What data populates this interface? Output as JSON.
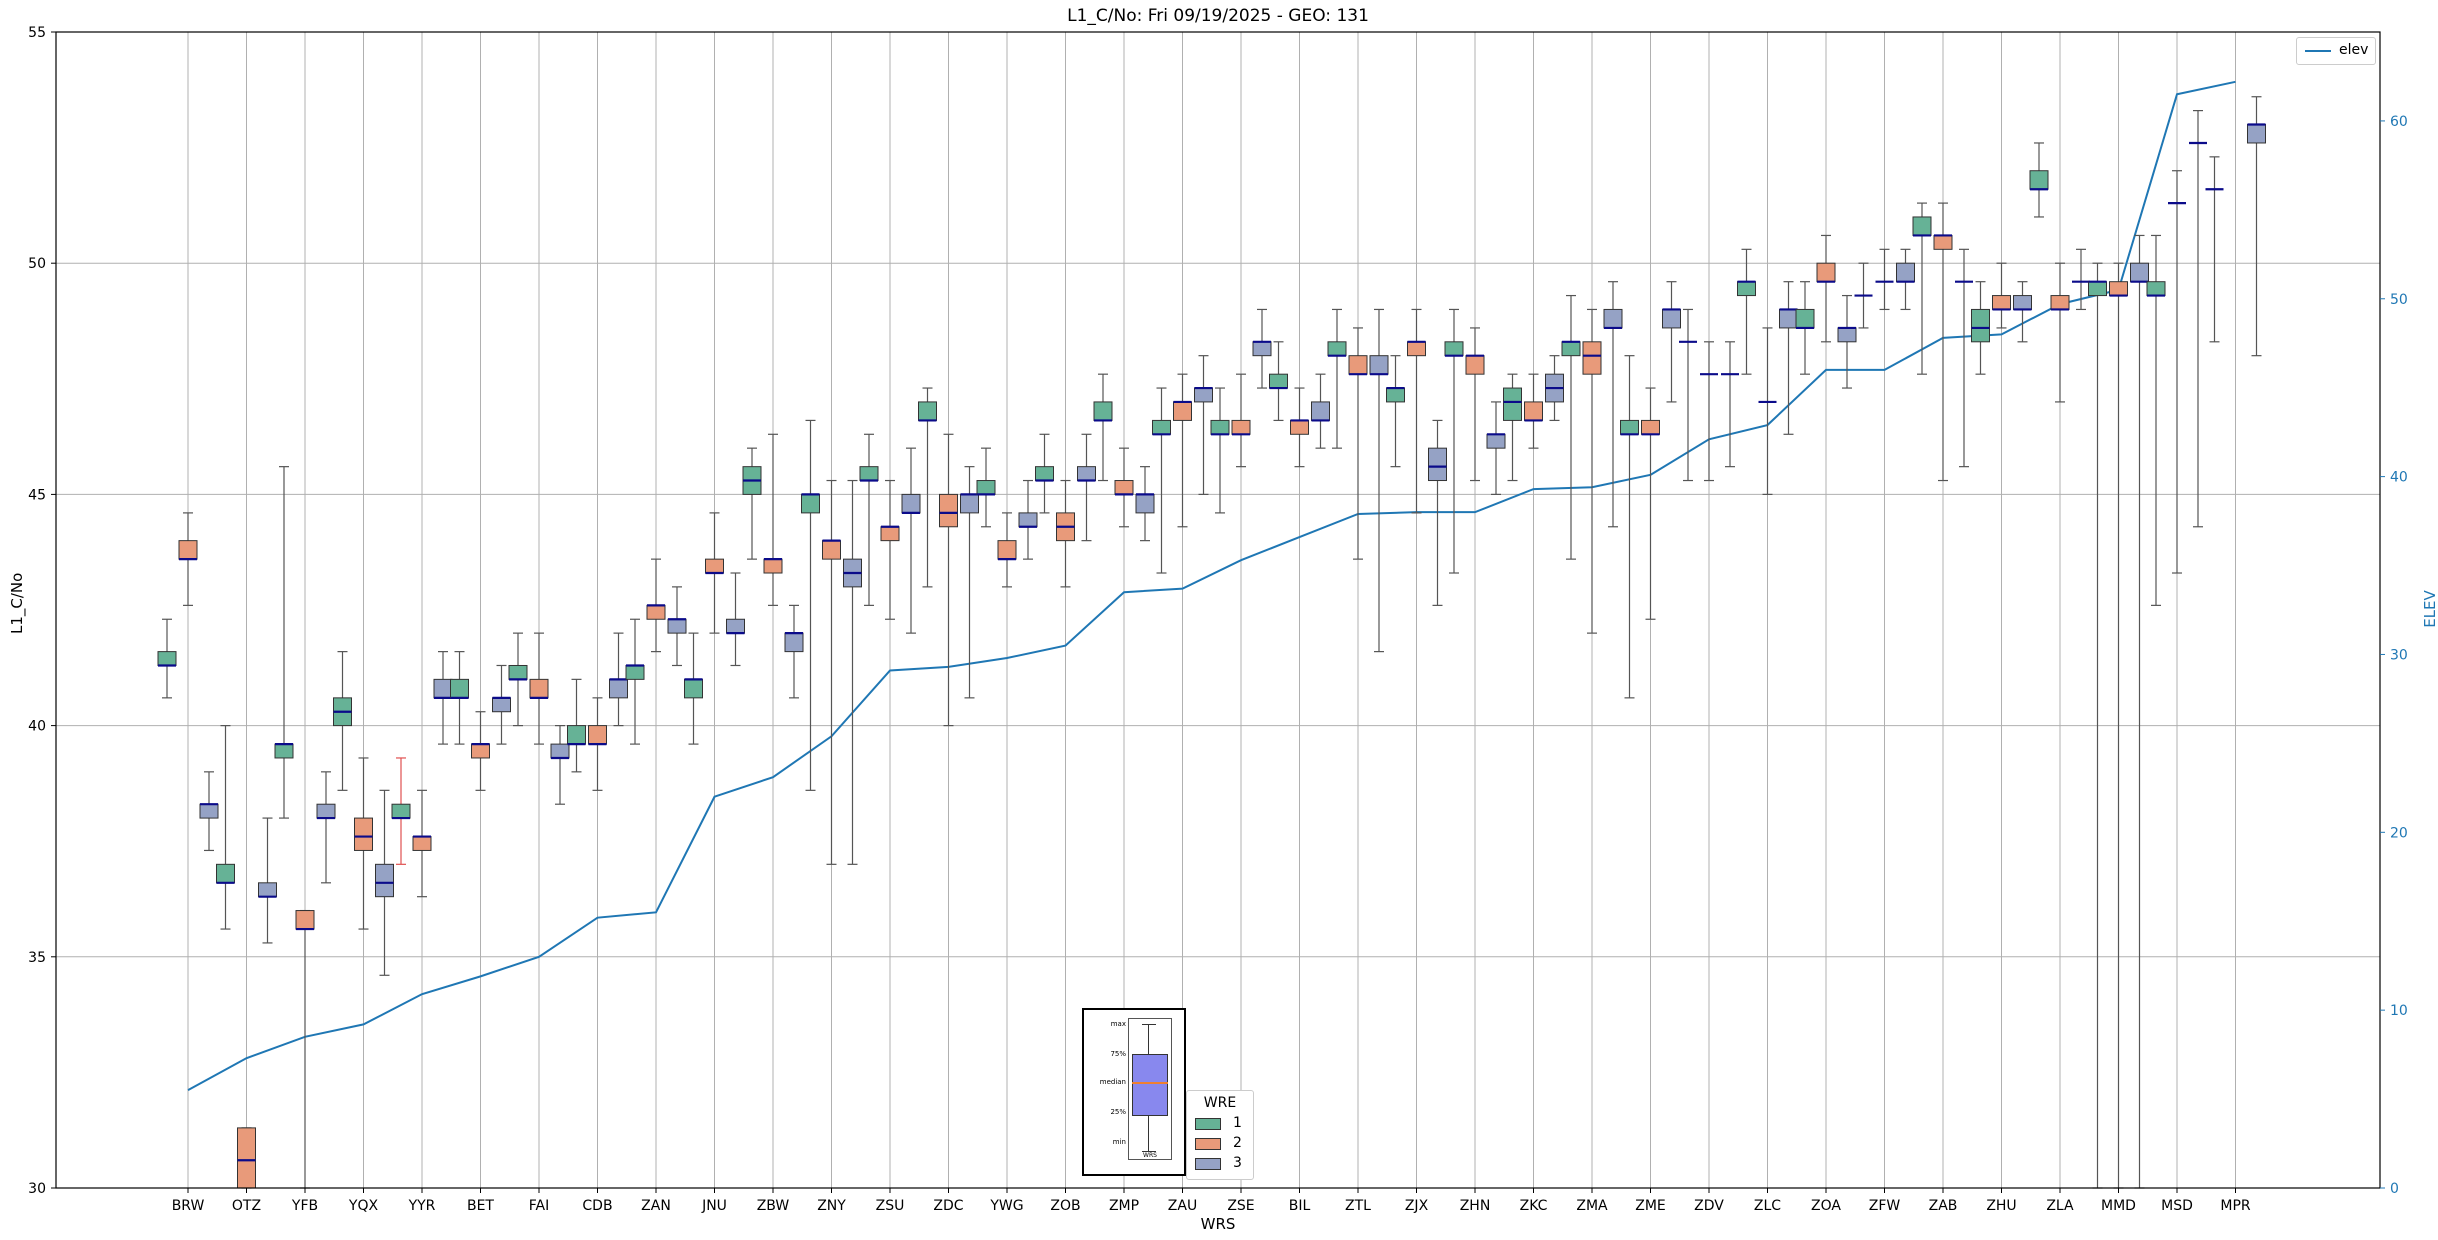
{
  "chart_data": {
    "type": "boxplot",
    "title": "L1_C/No: Fri 09/19/2025 - GEO: 131",
    "xlabel": "WRS",
    "ylabel": "L1_C/No",
    "y2label": "ELEV",
    "ylim": [
      30,
      55
    ],
    "y2lim": [
      0,
      65
    ],
    "yticks": [
      30,
      35,
      40,
      45,
      50,
      55
    ],
    "y2ticks": [
      0,
      10,
      20,
      30,
      40,
      50,
      60
    ],
    "grid": true,
    "colors": {
      "1": "#66b296",
      "2": "#e89a7a",
      "3": "#95a2c5",
      "elev": "#1f77b4",
      "median": "#0b0b8a",
      "whisker": "#555555",
      "whisker_red": "#e05050"
    },
    "categories": [
      "BRW",
      "OTZ",
      "YFB",
      "YQX",
      "YYR",
      "BET",
      "FAI",
      "CDB",
      "ZAN",
      "JNU",
      "ZBW",
      "ZNY",
      "ZSU",
      "ZDC",
      "YWG",
      "ZOB",
      "ZMP",
      "ZAU",
      "ZSE",
      "BIL",
      "ZTL",
      "ZJX",
      "ZHN",
      "ZKC",
      "ZMA",
      "ZME",
      "ZDV",
      "ZLC",
      "ZOA",
      "ZFW",
      "ZAB",
      "ZHU",
      "ZLA",
      "MMD",
      "MSD",
      "MPR"
    ],
    "elev_series": {
      "name": "elev",
      "values": [
        5.5,
        7.3,
        8.5,
        9.2,
        10.9,
        11.9,
        13.0,
        15.2,
        15.5,
        22.0,
        23.1,
        25.4,
        29.1,
        29.3,
        29.8,
        30.5,
        33.5,
        33.7,
        35.3,
        36.6,
        37.9,
        38.0,
        38.0,
        39.3,
        39.4,
        40.1,
        42.1,
        42.9,
        46.0,
        46.0,
        47.8,
        48.0,
        49.7,
        50.5,
        61.5,
        62.2
      ]
    },
    "boxes": [
      {
        "wrs": "BRW",
        "wre": 1,
        "q1": 41.3,
        "q3": 41.6,
        "median": 41.3,
        "min": 40.6,
        "max": 42.3
      },
      {
        "wrs": "BRW",
        "wre": 2,
        "q1": 43.6,
        "q3": 44.0,
        "median": 43.6,
        "min": 42.6,
        "max": 44.6
      },
      {
        "wrs": "BRW",
        "wre": 3,
        "q1": 38.0,
        "q3": 38.3,
        "median": 38.3,
        "min": 37.3,
        "max": 39.0
      },
      {
        "wrs": "OTZ",
        "wre": 1,
        "q1": 36.6,
        "q3": 37.0,
        "median": 36.6,
        "min": 35.6,
        "max": 40.0
      },
      {
        "wrs": "OTZ",
        "wre": 2,
        "q1": 30.0,
        "q3": 31.3,
        "median": 30.6,
        "min": 30.0,
        "max": 31.3
      },
      {
        "wrs": "OTZ",
        "wre": 3,
        "q1": 36.3,
        "q3": 36.6,
        "median": 36.3,
        "min": 35.3,
        "max": 38.0
      },
      {
        "wrs": "YFB",
        "wre": 1,
        "q1": 39.3,
        "q3": 39.6,
        "median": 39.6,
        "min": 38.0,
        "max": 45.6
      },
      {
        "wrs": "YFB",
        "wre": 2,
        "q1": 35.6,
        "q3": 36.0,
        "median": 35.6,
        "min": 30.0,
        "max": 36.0
      },
      {
        "wrs": "YFB",
        "wre": 3,
        "q1": 38.0,
        "q3": 38.3,
        "median": 38.0,
        "min": 36.6,
        "max": 39.0
      },
      {
        "wrs": "YQX",
        "wre": 1,
        "q1": 40.0,
        "q3": 40.6,
        "median": 40.3,
        "min": 38.6,
        "max": 41.6
      },
      {
        "wrs": "YQX",
        "wre": 2,
        "q1": 37.3,
        "q3": 38.0,
        "median": 37.6,
        "min": 35.6,
        "max": 39.3
      },
      {
        "wrs": "YQX",
        "wre": 3,
        "q1": 36.3,
        "q3": 37.0,
        "median": 36.6,
        "min": 34.6,
        "max": 38.6
      },
      {
        "wrs": "YYR",
        "wre": 1,
        "q1": 38.0,
        "q3": 38.3,
        "median": 38.0,
        "min": 37.0,
        "max": 39.3,
        "red_whisker": true
      },
      {
        "wrs": "YYR",
        "wre": 2,
        "q1": 37.3,
        "q3": 37.6,
        "median": 37.6,
        "min": 36.3,
        "max": 38.6
      },
      {
        "wrs": "YYR",
        "wre": 3,
        "q1": 40.6,
        "q3": 41.0,
        "median": 40.6,
        "min": 39.6,
        "max": 41.6
      },
      {
        "wrs": "BET",
        "wre": 1,
        "q1": 40.6,
        "q3": 41.0,
        "median": 40.6,
        "min": 39.6,
        "max": 41.6
      },
      {
        "wrs": "BET",
        "wre": 2,
        "q1": 39.3,
        "q3": 39.6,
        "median": 39.6,
        "min": 38.6,
        "max": 40.3
      },
      {
        "wrs": "BET",
        "wre": 3,
        "q1": 40.3,
        "q3": 40.6,
        "median": 40.6,
        "min": 39.6,
        "max": 41.3
      },
      {
        "wrs": "FAI",
        "wre": 1,
        "q1": 41.0,
        "q3": 41.3,
        "median": 41.0,
        "min": 40.0,
        "max": 42.0
      },
      {
        "wrs": "FAI",
        "wre": 2,
        "q1": 40.6,
        "q3": 41.0,
        "median": 40.6,
        "min": 39.6,
        "max": 42.0
      },
      {
        "wrs": "FAI",
        "wre": 3,
        "q1": 39.3,
        "q3": 39.6,
        "median": 39.3,
        "min": 38.3,
        "max": 40.0
      },
      {
        "wrs": "CDB",
        "wre": 1,
        "q1": 39.6,
        "q3": 40.0,
        "median": 39.6,
        "min": 39.0,
        "max": 41.0
      },
      {
        "wrs": "CDB",
        "wre": 2,
        "q1": 39.6,
        "q3": 40.0,
        "median": 39.6,
        "min": 38.6,
        "max": 40.6
      },
      {
        "wrs": "CDB",
        "wre": 3,
        "q1": 40.6,
        "q3": 41.0,
        "median": 41.0,
        "min": 40.0,
        "max": 42.0
      },
      {
        "wrs": "ZAN",
        "wre": 1,
        "q1": 41.0,
        "q3": 41.3,
        "median": 41.3,
        "min": 39.6,
        "max": 42.3
      },
      {
        "wrs": "ZAN",
        "wre": 2,
        "q1": 42.3,
        "q3": 42.6,
        "median": 42.6,
        "min": 41.6,
        "max": 43.6
      },
      {
        "wrs": "ZAN",
        "wre": 3,
        "q1": 42.0,
        "q3": 42.3,
        "median": 42.3,
        "min": 41.3,
        "max": 43.0
      },
      {
        "wrs": "JNU",
        "wre": 1,
        "q1": 40.6,
        "q3": 41.0,
        "median": 41.0,
        "min": 39.6,
        "max": 42.0
      },
      {
        "wrs": "JNU",
        "wre": 2,
        "q1": 43.3,
        "q3": 43.6,
        "median": 43.3,
        "min": 42.0,
        "max": 44.6
      },
      {
        "wrs": "JNU",
        "wre": 3,
        "q1": 42.0,
        "q3": 42.3,
        "median": 42.0,
        "min": 41.3,
        "max": 43.3
      },
      {
        "wrs": "ZBW",
        "wre": 1,
        "q1": 45.0,
        "q3": 45.6,
        "median": 45.3,
        "min": 43.6,
        "max": 46.0
      },
      {
        "wrs": "ZBW",
        "wre": 2,
        "q1": 43.3,
        "q3": 43.6,
        "median": 43.6,
        "min": 42.6,
        "max": 46.3
      },
      {
        "wrs": "ZBW",
        "wre": 3,
        "q1": 41.6,
        "q3": 42.0,
        "median": 42.0,
        "min": 40.6,
        "max": 42.6
      },
      {
        "wrs": "ZNY",
        "wre": 1,
        "q1": 44.6,
        "q3": 45.0,
        "median": 45.0,
        "min": 38.6,
        "max": 46.6
      },
      {
        "wrs": "ZNY",
        "wre": 2,
        "q1": 43.6,
        "q3": 44.0,
        "median": 44.0,
        "min": 37.0,
        "max": 45.3
      },
      {
        "wrs": "ZNY",
        "wre": 3,
        "q1": 43.0,
        "q3": 43.6,
        "median": 43.3,
        "min": 37.0,
        "max": 45.3
      },
      {
        "wrs": "ZSU",
        "wre": 1,
        "q1": 45.3,
        "q3": 45.6,
        "median": 45.3,
        "min": 42.6,
        "max": 46.3
      },
      {
        "wrs": "ZSU",
        "wre": 2,
        "q1": 44.0,
        "q3": 44.3,
        "median": 44.3,
        "min": 42.3,
        "max": 45.3
      },
      {
        "wrs": "ZSU",
        "wre": 3,
        "q1": 44.6,
        "q3": 45.0,
        "median": 44.6,
        "min": 42.0,
        "max": 46.0
      },
      {
        "wrs": "ZDC",
        "wre": 1,
        "q1": 46.6,
        "q3": 47.0,
        "median": 46.6,
        "min": 43.0,
        "max": 47.3
      },
      {
        "wrs": "ZDC",
        "wre": 2,
        "q1": 44.3,
        "q3": 45.0,
        "median": 44.6,
        "min": 40.0,
        "max": 46.3
      },
      {
        "wrs": "ZDC",
        "wre": 3,
        "q1": 44.6,
        "q3": 45.0,
        "median": 45.0,
        "min": 40.6,
        "max": 45.6
      },
      {
        "wrs": "YWG",
        "wre": 1,
        "q1": 45.0,
        "q3": 45.3,
        "median": 45.0,
        "min": 44.3,
        "max": 46.0
      },
      {
        "wrs": "YWG",
        "wre": 2,
        "q1": 43.6,
        "q3": 44.0,
        "median": 43.6,
        "min": 43.0,
        "max": 44.6
      },
      {
        "wrs": "YWG",
        "wre": 3,
        "q1": 44.3,
        "q3": 44.6,
        "median": 44.3,
        "min": 43.6,
        "max": 45.3
      },
      {
        "wrs": "ZOB",
        "wre": 1,
        "q1": 45.3,
        "q3": 45.6,
        "median": 45.3,
        "min": 44.6,
        "max": 46.3
      },
      {
        "wrs": "ZOB",
        "wre": 2,
        "q1": 44.0,
        "q3": 44.6,
        "median": 44.3,
        "min": 43.0,
        "max": 45.3
      },
      {
        "wrs": "ZOB",
        "wre": 3,
        "q1": 45.3,
        "q3": 45.6,
        "median": 45.3,
        "min": 44.0,
        "max": 46.3
      },
      {
        "wrs": "ZMP",
        "wre": 1,
        "q1": 46.6,
        "q3": 47.0,
        "median": 46.6,
        "min": 45.3,
        "max": 47.6
      },
      {
        "wrs": "ZMP",
        "wre": 2,
        "q1": 45.0,
        "q3": 45.3,
        "median": 45.0,
        "min": 44.3,
        "max": 46.0
      },
      {
        "wrs": "ZMP",
        "wre": 3,
        "q1": 44.6,
        "q3": 45.0,
        "median": 45.0,
        "min": 44.0,
        "max": 45.6
      },
      {
        "wrs": "ZAU",
        "wre": 1,
        "q1": 46.3,
        "q3": 46.6,
        "median": 46.3,
        "min": 43.3,
        "max": 47.3
      },
      {
        "wrs": "ZAU",
        "wre": 2,
        "q1": 46.6,
        "q3": 47.0,
        "median": 47.0,
        "min": 44.3,
        "max": 47.6
      },
      {
        "wrs": "ZAU",
        "wre": 3,
        "q1": 47.0,
        "q3": 47.3,
        "median": 47.3,
        "min": 45.0,
        "max": 48.0
      },
      {
        "wrs": "ZSE",
        "wre": 1,
        "q1": 46.3,
        "q3": 46.6,
        "median": 46.3,
        "min": 44.6,
        "max": 47.3
      },
      {
        "wrs": "ZSE",
        "wre": 2,
        "q1": 46.3,
        "q3": 46.6,
        "median": 46.3,
        "min": 45.6,
        "max": 47.6
      },
      {
        "wrs": "ZSE",
        "wre": 3,
        "q1": 48.0,
        "q3": 48.3,
        "median": 48.3,
        "min": 47.3,
        "max": 49.0
      },
      {
        "wrs": "BIL",
        "wre": 1,
        "q1": 47.3,
        "q3": 47.6,
        "median": 47.3,
        "min": 46.6,
        "max": 48.3
      },
      {
        "wrs": "BIL",
        "wre": 2,
        "q1": 46.3,
        "q3": 46.6,
        "median": 46.6,
        "min": 45.6,
        "max": 47.3
      },
      {
        "wrs": "BIL",
        "wre": 3,
        "q1": 46.6,
        "q3": 47.0,
        "median": 46.6,
        "min": 46.0,
        "max": 47.6
      },
      {
        "wrs": "ZTL",
        "wre": 1,
        "q1": 48.0,
        "q3": 48.3,
        "median": 48.0,
        "min": 46.0,
        "max": 49.0
      },
      {
        "wrs": "ZTL",
        "wre": 2,
        "q1": 47.6,
        "q3": 48.0,
        "median": 47.6,
        "min": 43.6,
        "max": 48.6
      },
      {
        "wrs": "ZTL",
        "wre": 3,
        "q1": 47.6,
        "q3": 48.0,
        "median": 47.6,
        "min": 41.6,
        "max": 49.0
      },
      {
        "wrs": "ZJX",
        "wre": 1,
        "q1": 47.0,
        "q3": 47.3,
        "median": 47.3,
        "min": 45.6,
        "max": 48.0
      },
      {
        "wrs": "ZJX",
        "wre": 2,
        "q1": 48.0,
        "q3": 48.3,
        "median": 48.3,
        "min": 44.6,
        "max": 49.0
      },
      {
        "wrs": "ZJX",
        "wre": 3,
        "q1": 45.3,
        "q3": 46.0,
        "median": 45.6,
        "min": 42.6,
        "max": 46.6
      },
      {
        "wrs": "ZHN",
        "wre": 1,
        "q1": 48.0,
        "q3": 48.3,
        "median": 48.0,
        "min": 43.3,
        "max": 49.0
      },
      {
        "wrs": "ZHN",
        "wre": 2,
        "q1": 47.6,
        "q3": 48.0,
        "median": 48.0,
        "min": 45.3,
        "max": 48.6
      },
      {
        "wrs": "ZHN",
        "wre": 3,
        "q1": 46.0,
        "q3": 46.3,
        "median": 46.3,
        "min": 45.0,
        "max": 47.0
      },
      {
        "wrs": "ZKC",
        "wre": 1,
        "q1": 46.6,
        "q3": 47.3,
        "median": 47.0,
        "min": 45.3,
        "max": 47.6
      },
      {
        "wrs": "ZKC",
        "wre": 2,
        "q1": 46.6,
        "q3": 47.0,
        "median": 46.6,
        "min": 46.0,
        "max": 47.6
      },
      {
        "wrs": "ZKC",
        "wre": 3,
        "q1": 47.0,
        "q3": 47.6,
        "median": 47.3,
        "min": 46.6,
        "max": 48.0
      },
      {
        "wrs": "ZMA",
        "wre": 1,
        "q1": 48.0,
        "q3": 48.3,
        "median": 48.3,
        "min": 43.6,
        "max": 49.3
      },
      {
        "wrs": "ZMA",
        "wre": 2,
        "q1": 47.6,
        "q3": 48.3,
        "median": 48.0,
        "min": 42.0,
        "max": 49.0
      },
      {
        "wrs": "ZMA",
        "wre": 3,
        "q1": 48.6,
        "q3": 49.0,
        "median": 48.6,
        "min": 44.3,
        "max": 49.6
      },
      {
        "wrs": "ZME",
        "wre": 1,
        "q1": 46.3,
        "q3": 46.6,
        "median": 46.3,
        "min": 40.6,
        "max": 48.0
      },
      {
        "wrs": "ZME",
        "wre": 2,
        "q1": 46.3,
        "q3": 46.6,
        "median": 46.3,
        "min": 42.3,
        "max": 47.3
      },
      {
        "wrs": "ZME",
        "wre": 3,
        "q1": 48.6,
        "q3": 49.0,
        "median": 49.0,
        "min": 47.0,
        "max": 49.6
      },
      {
        "wrs": "ZDV",
        "wre": 1,
        "q1": 48.3,
        "q3": 48.3,
        "median": 48.3,
        "min": 45.3,
        "max": 49.0
      },
      {
        "wrs": "ZDV",
        "wre": 2,
        "q1": 47.6,
        "q3": 47.6,
        "median": 47.6,
        "min": 45.3,
        "max": 48.3
      },
      {
        "wrs": "ZDV",
        "wre": 3,
        "q1": 47.6,
        "q3": 47.6,
        "median": 47.6,
        "min": 45.6,
        "max": 48.3
      },
      {
        "wrs": "ZLC",
        "wre": 1,
        "q1": 49.3,
        "q3": 49.6,
        "median": 49.6,
        "min": 47.6,
        "max": 50.3
      },
      {
        "wrs": "ZLC",
        "wre": 2,
        "q1": 47.0,
        "q3": 47.0,
        "median": 47.0,
        "min": 45.0,
        "max": 48.6
      },
      {
        "wrs": "ZLC",
        "wre": 3,
        "q1": 48.6,
        "q3": 49.0,
        "median": 49.0,
        "min": 46.3,
        "max": 49.6
      },
      {
        "wrs": "ZOA",
        "wre": 1,
        "q1": 48.6,
        "q3": 49.0,
        "median": 48.6,
        "min": 47.6,
        "max": 49.6
      },
      {
        "wrs": "ZOA",
        "wre": 2,
        "q1": 49.6,
        "q3": 50.0,
        "median": 49.6,
        "min": 48.3,
        "max": 50.6
      },
      {
        "wrs": "ZOA",
        "wre": 3,
        "q1": 48.3,
        "q3": 48.6,
        "median": 48.6,
        "min": 47.3,
        "max": 49.3
      },
      {
        "wrs": "ZFW",
        "wre": 1,
        "q1": 49.3,
        "q3": 49.3,
        "median": 49.3,
        "min": 48.6,
        "max": 50.0
      },
      {
        "wrs": "ZFW",
        "wre": 2,
        "q1": 49.6,
        "q3": 49.6,
        "median": 49.6,
        "min": 49.0,
        "max": 50.3
      },
      {
        "wrs": "ZFW",
        "wre": 3,
        "q1": 49.6,
        "q3": 50.0,
        "median": 49.6,
        "min": 49.0,
        "max": 50.3
      },
      {
        "wrs": "ZAB",
        "wre": 1,
        "q1": 50.6,
        "q3": 51.0,
        "median": 50.6,
        "min": 47.6,
        "max": 51.3
      },
      {
        "wrs": "ZAB",
        "wre": 2,
        "q1": 50.3,
        "q3": 50.6,
        "median": 50.6,
        "min": 45.3,
        "max": 51.3
      },
      {
        "wrs": "ZAB",
        "wre": 3,
        "q1": 49.6,
        "q3": 49.6,
        "median": 49.6,
        "min": 45.6,
        "max": 50.3
      },
      {
        "wrs": "ZHU",
        "wre": 1,
        "q1": 48.3,
        "q3": 49.0,
        "median": 48.6,
        "min": 47.6,
        "max": 49.6
      },
      {
        "wrs": "ZHU",
        "wre": 2,
        "q1": 49.0,
        "q3": 49.3,
        "median": 49.0,
        "min": 48.6,
        "max": 50.0
      },
      {
        "wrs": "ZHU",
        "wre": 3,
        "q1": 49.0,
        "q3": 49.3,
        "median": 49.0,
        "min": 48.3,
        "max": 49.6
      },
      {
        "wrs": "ZLA",
        "wre": 1,
        "q1": 51.6,
        "q3": 52.0,
        "median": 51.6,
        "min": 51.0,
        "max": 52.6
      },
      {
        "wrs": "ZLA",
        "wre": 2,
        "q1": 49.0,
        "q3": 49.3,
        "median": 49.0,
        "min": 47.0,
        "max": 50.0
      },
      {
        "wrs": "ZLA",
        "wre": 3,
        "q1": 49.6,
        "q3": 49.6,
        "median": 49.6,
        "min": 49.0,
        "max": 50.3
      },
      {
        "wrs": "MMD",
        "wre": 1,
        "q1": 49.3,
        "q3": 49.6,
        "median": 49.6,
        "min": 30.0,
        "max": 50.0
      },
      {
        "wrs": "MMD",
        "wre": 2,
        "q1": 49.3,
        "q3": 49.6,
        "median": 49.3,
        "min": 30.0,
        "max": 50.0
      },
      {
        "wrs": "MMD",
        "wre": 3,
        "q1": 49.6,
        "q3": 50.0,
        "median": 49.6,
        "min": 30.0,
        "max": 50.6
      },
      {
        "wrs": "MSD",
        "wre": 1,
        "q1": 49.3,
        "q3": 49.6,
        "median": 49.3,
        "min": 42.6,
        "max": 50.6
      },
      {
        "wrs": "MSD",
        "wre": 2,
        "q1": 51.3,
        "q3": 51.3,
        "median": 51.3,
        "min": 43.3,
        "max": 52.0
      },
      {
        "wrs": "MSD",
        "wre": 3,
        "q1": 52.6,
        "q3": 52.6,
        "median": 52.6,
        "min": 44.3,
        "max": 53.3
      },
      {
        "wrs": "MPR",
        "wre": 1,
        "q1": 51.6,
        "q3": 51.6,
        "median": 51.6,
        "min": 48.3,
        "max": 52.3
      },
      {
        "wrs": "MPR",
        "wre": 3,
        "q1": 52.6,
        "q3": 53.0,
        "median": 53.0,
        "min": 48.0,
        "max": 53.6
      }
    ]
  },
  "legend": {
    "elev_label": "elev",
    "wre_title": "WRE",
    "wre_items": [
      "1",
      "2",
      "3"
    ]
  },
  "inset": {
    "labels": [
      "max",
      "75%",
      "median",
      "25%",
      "min"
    ],
    "xlabel": "WRS"
  }
}
